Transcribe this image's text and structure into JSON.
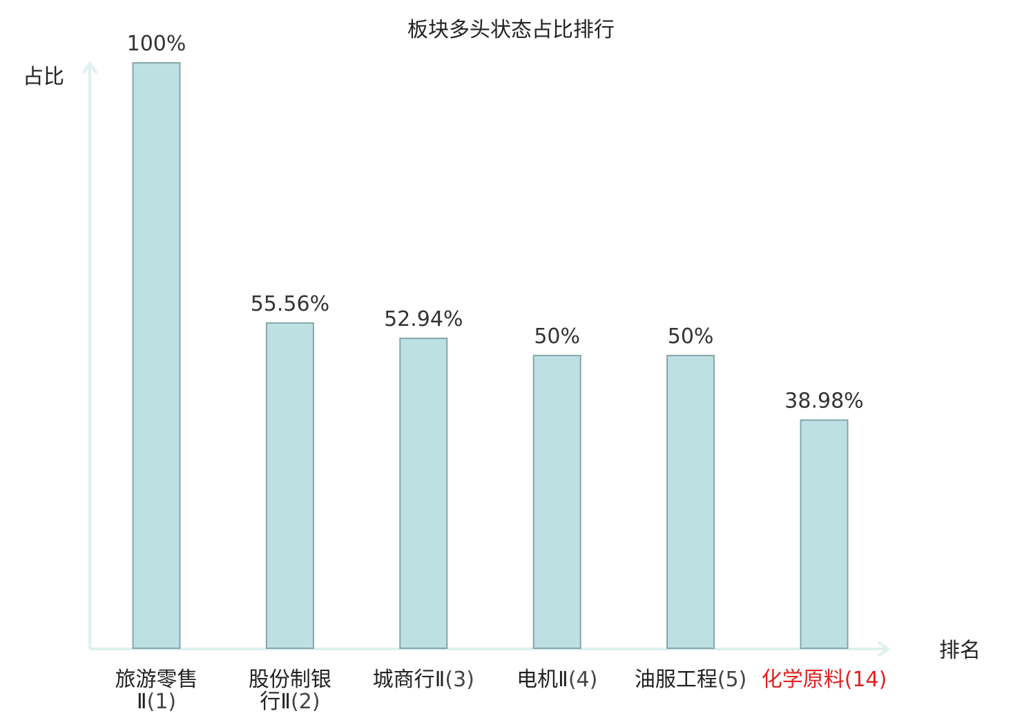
{
  "chart_data": {
    "type": "bar",
    "title": "板块多头状态占比排行",
    "ylabel": "占比",
    "xlabel": "排名",
    "ylim": [
      0,
      100
    ],
    "grid": false,
    "legend": "none",
    "bar_color": "#bde0e3",
    "bar_stroke": "#85a6ab",
    "axis_color": "#dff0ee",
    "highlight_color": "#e02020",
    "categories": [
      {
        "name": "旅游零售Ⅱ",
        "lines": [
          "旅游零售",
          "Ⅱ"
        ],
        "rank": "(1)",
        "value": 100,
        "label": "100%",
        "highlight": false
      },
      {
        "name": "股份制银行Ⅱ",
        "lines": [
          "股份制银",
          "行Ⅱ"
        ],
        "rank": "(2)",
        "value": 55.56,
        "label": "55.56%",
        "highlight": false
      },
      {
        "name": "城商行Ⅱ",
        "lines": [
          "城商行Ⅱ"
        ],
        "rank": "(3)",
        "value": 52.94,
        "label": "52.94%",
        "highlight": false
      },
      {
        "name": "电机Ⅱ",
        "lines": [
          "电机Ⅱ"
        ],
        "rank": "(4)",
        "value": 50,
        "label": "50%",
        "highlight": false
      },
      {
        "name": "油服工程",
        "lines": [
          "油服工程"
        ],
        "rank": "(5)",
        "value": 50,
        "label": "50%",
        "highlight": false
      },
      {
        "name": "化学原料",
        "lines": [
          "化学原料"
        ],
        "rank": "(14)",
        "value": 38.98,
        "label": "38.98%",
        "highlight": true
      }
    ]
  }
}
